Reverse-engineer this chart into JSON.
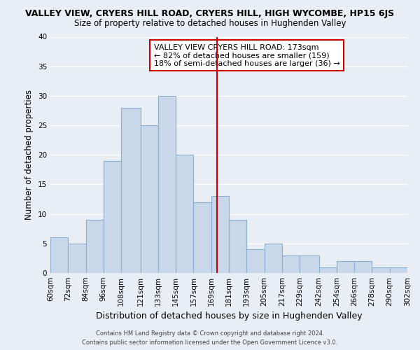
{
  "title1": "VALLEY VIEW, CRYERS HILL ROAD, CRYERS HILL, HIGH WYCOMBE, HP15 6JS",
  "title2": "Size of property relative to detached houses in Hughenden Valley",
  "xlabel": "Distribution of detached houses by size in Hughenden Valley",
  "ylabel": "Number of detached properties",
  "bin_edges": [
    60,
    72,
    84,
    96,
    108,
    121,
    133,
    145,
    157,
    169,
    181,
    193,
    205,
    217,
    229,
    242,
    254,
    266,
    278,
    290,
    302
  ],
  "bin_labels": [
    "60sqm",
    "72sqm",
    "84sqm",
    "96sqm",
    "108sqm",
    "121sqm",
    "133sqm",
    "145sqm",
    "157sqm",
    "169sqm",
    "181sqm",
    "193sqm",
    "205sqm",
    "217sqm",
    "229sqm",
    "242sqm",
    "254sqm",
    "266sqm",
    "278sqm",
    "290sqm",
    "302sqm"
  ],
  "counts": [
    6,
    5,
    9,
    19,
    28,
    25,
    30,
    20,
    12,
    13,
    9,
    4,
    5,
    3,
    3,
    1,
    2,
    2,
    1,
    1
  ],
  "bar_color": "#c8d8ea",
  "bar_edge_color": "#8aaecc",
  "property_size": 173,
  "vline_color": "#cc0000",
  "ylim": [
    0,
    40
  ],
  "yticks": [
    0,
    5,
    10,
    15,
    20,
    25,
    30,
    35,
    40
  ],
  "annotation_title": "VALLEY VIEW CRYERS HILL ROAD: 173sqm",
  "annotation_line1": "← 82% of detached houses are smaller (159)",
  "annotation_line2": "18% of semi-detached houses are larger (36) →",
  "annotation_box_color": "#ffffff",
  "annotation_box_edge": "#cc0000",
  "footer1": "Contains HM Land Registry data © Crown copyright and database right 2024.",
  "footer2": "Contains public sector information licensed under the Open Government Licence v3.0.",
  "background_color": "#e8eef4",
  "grid_color": "#ffffff"
}
